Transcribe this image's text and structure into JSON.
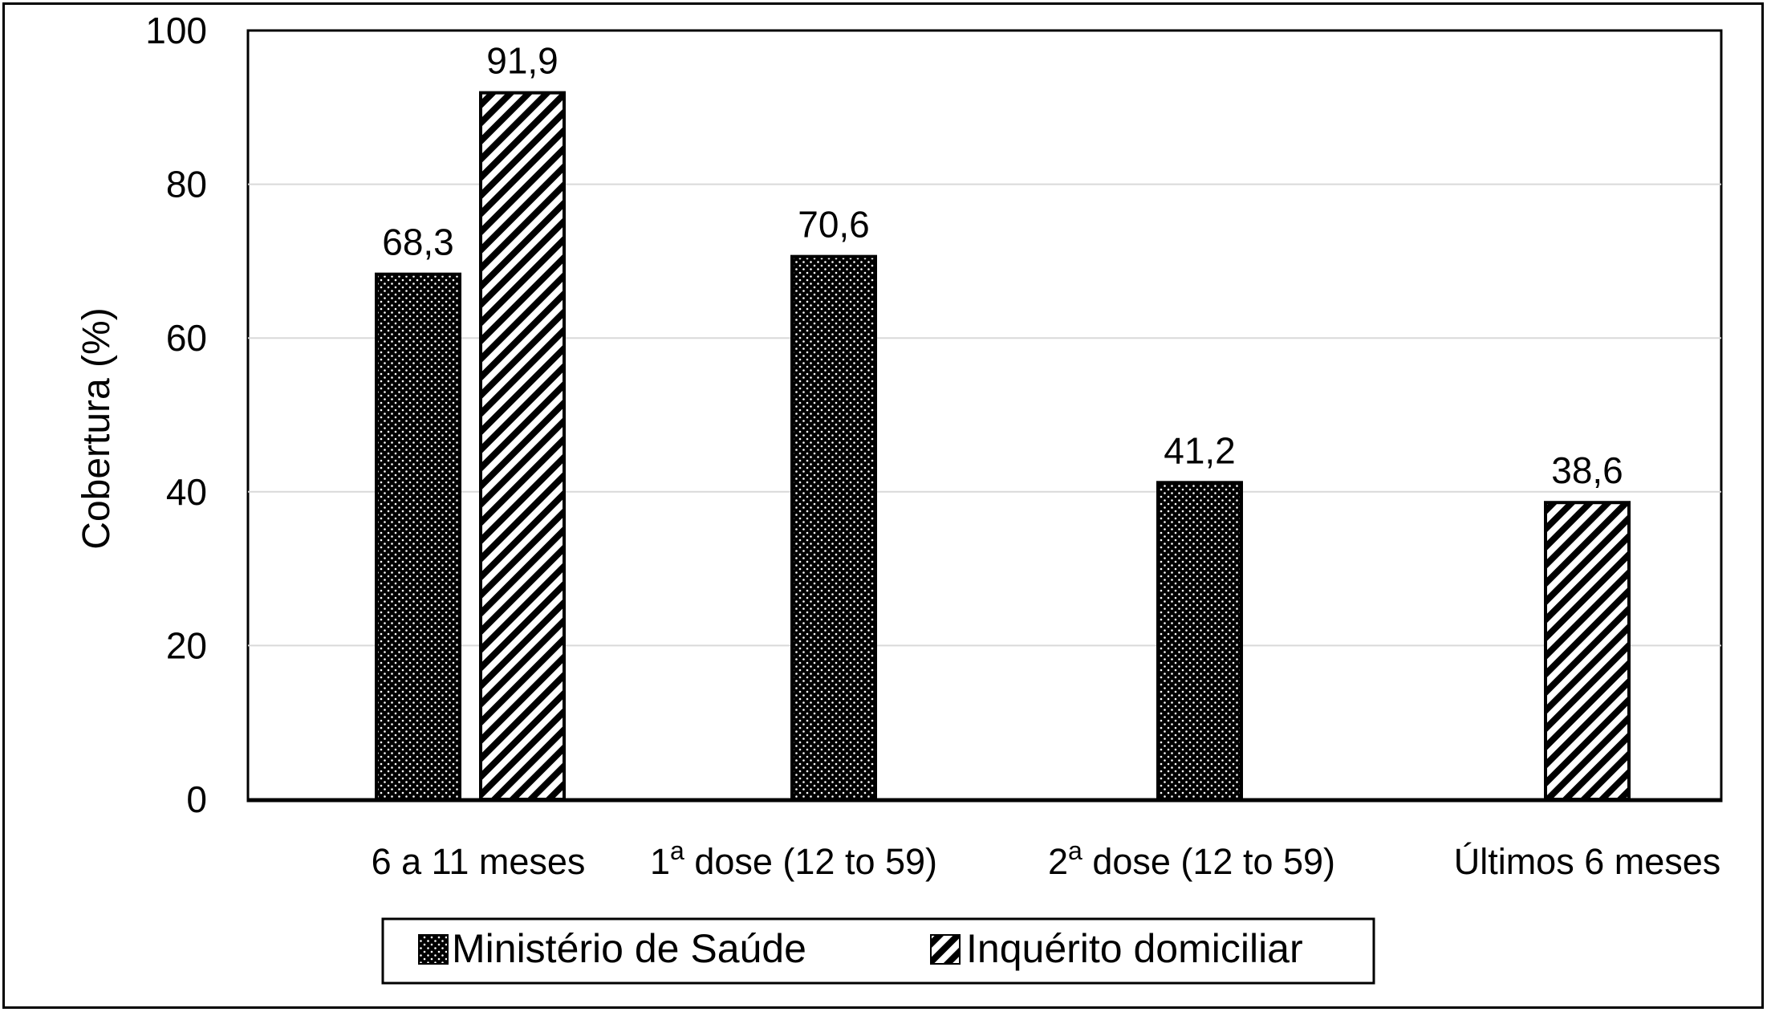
{
  "chart_data": {
    "type": "bar",
    "ylabel": "Cobertura (%)",
    "ylim": [
      0,
      100
    ],
    "yticks": [
      0,
      20,
      40,
      60,
      80,
      100
    ],
    "grid": true,
    "legend_position": "bottom",
    "categories": [
      {
        "main": "6  a 11 meses",
        "sup": ""
      },
      {
        "main": "1",
        "sup": "a",
        "rest": " dose (12 to 59)"
      },
      {
        "main": "2",
        "sup": "a",
        "rest": " dose (12 to 59)"
      },
      {
        "main": "Últimos 6 meses",
        "sup": ""
      }
    ],
    "series": [
      {
        "name": "Ministério de Saúde",
        "pattern": "dots",
        "values": [
          68.3,
          70.6,
          41.2,
          null
        ],
        "labels": [
          "68,3",
          "70,6",
          "41,2",
          ""
        ]
      },
      {
        "name": "Inquérito domiciliar",
        "pattern": "stripes",
        "values": [
          91.9,
          null,
          null,
          38.6
        ],
        "labels": [
          "91,9",
          "",
          "",
          "38,6"
        ]
      }
    ],
    "colors": {
      "bar_fill": "#000000",
      "pattern": "#ffffff",
      "grid": "#d9d9d9",
      "axis": "#000000"
    }
  }
}
